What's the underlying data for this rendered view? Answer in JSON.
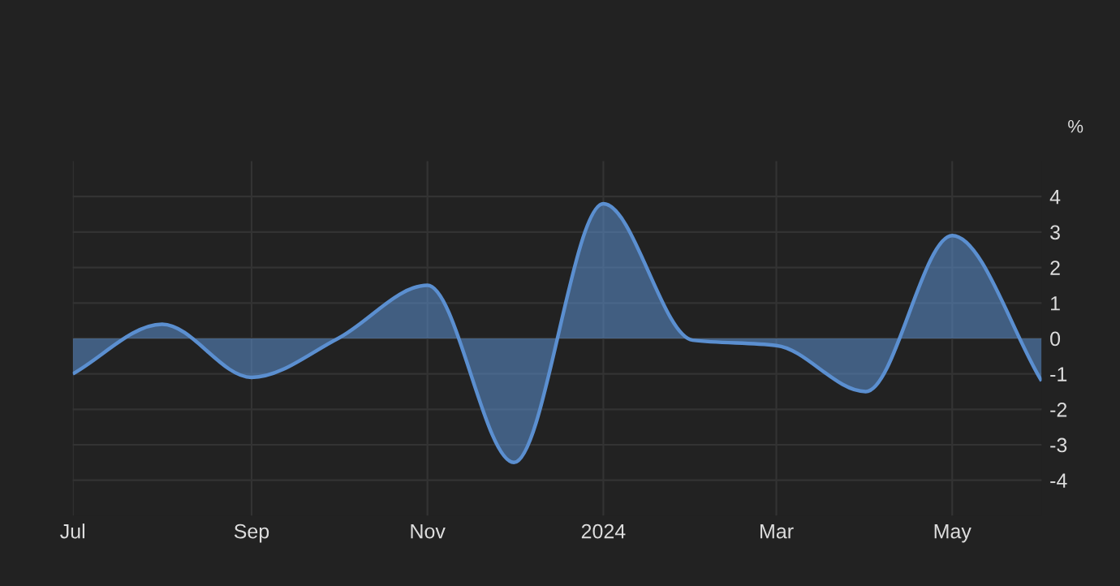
{
  "chart_data": {
    "type": "area",
    "ylabel": "%",
    "x": [
      "2023-07",
      "2023-08",
      "2023-09",
      "2023-10",
      "2023-11",
      "2023-12",
      "2024-01",
      "2024-02",
      "2024-03",
      "2024-04",
      "2024-05",
      "2024-06"
    ],
    "series": [
      {
        "color": "#5b8fd0",
        "values": [
          -1.0,
          0.4,
          -1.1,
          0.0,
          1.5,
          -3.5,
          3.8,
          -0.05,
          -0.2,
          -1.5,
          2.9,
          -1.2
        ]
      }
    ],
    "xlim": [
      "2023-07",
      "2024-06"
    ],
    "xticks": [
      {
        "value": "2023-07",
        "label": "Jul"
      },
      {
        "value": "2023-09",
        "label": "Sep"
      },
      {
        "value": "2023-11",
        "label": "Nov"
      },
      {
        "value": "2024-01",
        "label": "2024"
      },
      {
        "value": "2024-03",
        "label": "Mar"
      },
      {
        "value": "2024-05",
        "label": "May"
      }
    ],
    "ylim": [
      -5,
      5
    ],
    "yticks": [
      -4,
      -3,
      -2,
      -1,
      0,
      1,
      2,
      3,
      4
    ],
    "grid": true
  }
}
